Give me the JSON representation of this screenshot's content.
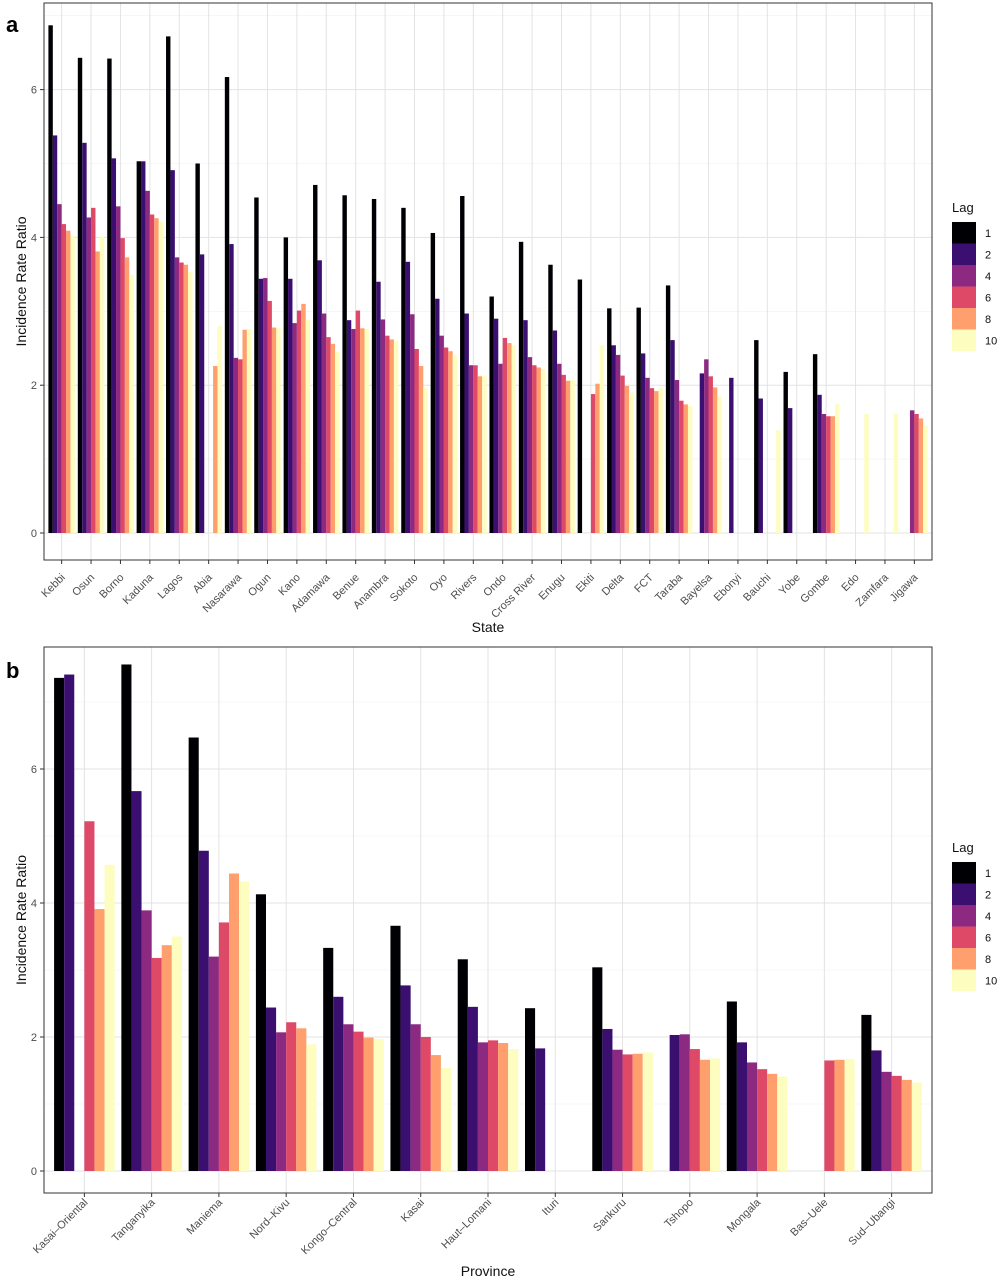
{
  "chart_data": [
    {
      "type": "bar",
      "panel_label": "a",
      "xlabel": "State",
      "ylabel": "Incidence Rate Ratio",
      "ylim": [
        0,
        7
      ],
      "yticks": [
        0,
        2,
        4,
        6
      ],
      "grid": true,
      "legend_title": "Lag",
      "legend_position": "right",
      "categories": [
        "Kebbi",
        "Osun",
        "Borno",
        "Kaduna",
        "Lagos",
        "Abia",
        "Nasarawa",
        "Ogun",
        "Kano",
        "Adamawa",
        "Benue",
        "Anambra",
        "Sokoto",
        "Oyo",
        "Rivers",
        "Ondo",
        "Cross River",
        "Enugu",
        "Ekiti",
        "Delta",
        "FCT",
        "Taraba",
        "Bayelsa",
        "Ebonyi",
        "Bauchi",
        "Yobe",
        "Gombe",
        "Edo",
        "Zamfara",
        "Jigawa"
      ],
      "series": [
        {
          "name": "1",
          "color": "#000004",
          "values": [
            6.87,
            6.43,
            6.42,
            5.03,
            6.72,
            5.0,
            6.17,
            4.54,
            4.0,
            4.71,
            4.57,
            4.52,
            4.4,
            4.06,
            4.56,
            3.2,
            3.94,
            3.63,
            3.43,
            3.04,
            3.05,
            3.35,
            null,
            null,
            2.61,
            2.18,
            2.42,
            null,
            null,
            null
          ]
        },
        {
          "name": "2",
          "color": "#3b0f70",
          "values": [
            5.38,
            5.28,
            5.07,
            5.03,
            4.91,
            3.77,
            3.91,
            3.44,
            3.44,
            3.69,
            2.88,
            3.4,
            3.67,
            3.17,
            2.97,
            2.9,
            2.88,
            2.74,
            null,
            2.54,
            2.43,
            2.61,
            2.16,
            2.1,
            1.82,
            1.69,
            1.87,
            null,
            null,
            null
          ]
        },
        {
          "name": "4",
          "color": "#8c2981",
          "values": [
            4.45,
            4.27,
            4.42,
            4.63,
            3.73,
            null,
            2.37,
            3.45,
            2.84,
            2.97,
            2.76,
            2.89,
            2.96,
            2.67,
            2.27,
            2.29,
            2.38,
            2.29,
            null,
            2.41,
            2.1,
            2.07,
            2.35,
            null,
            null,
            null,
            1.61,
            null,
            null,
            1.66
          ]
        },
        {
          "name": "6",
          "color": "#de4968",
          "values": [
            4.18,
            4.4,
            3.99,
            4.31,
            3.66,
            null,
            2.35,
            3.14,
            3.01,
            2.65,
            3.01,
            2.67,
            2.49,
            2.51,
            2.27,
            2.64,
            2.27,
            2.14,
            1.88,
            2.13,
            1.96,
            1.79,
            2.12,
            null,
            null,
            null,
            1.58,
            null,
            null,
            1.61
          ]
        },
        {
          "name": "8",
          "color": "#fe9f6d",
          "values": [
            4.09,
            3.81,
            3.73,
            4.26,
            3.63,
            2.26,
            2.75,
            2.78,
            3.1,
            2.56,
            2.77,
            2.62,
            2.26,
            2.46,
            2.12,
            2.57,
            2.24,
            2.06,
            2.02,
            1.99,
            1.92,
            1.74,
            1.97,
            null,
            null,
            null,
            1.58,
            null,
            null,
            1.55
          ]
        },
        {
          "name": "10",
          "color": "#fcfdbf",
          "values": [
            4.02,
            4.01,
            3.49,
            4.21,
            3.53,
            2.8,
            2.76,
            2.77,
            2.88,
            2.45,
            2.76,
            2.6,
            1.97,
            2.41,
            2.13,
            2.54,
            2.22,
            2.07,
            2.54,
            1.9,
            1.96,
            1.72,
            1.85,
            null,
            1.39,
            null,
            1.75,
            1.61,
            1.61,
            1.45
          ]
        }
      ]
    },
    {
      "type": "bar",
      "panel_label": "b",
      "xlabel": "Province",
      "ylabel": "Incidence Rate Ratio",
      "ylim": [
        0,
        7.8
      ],
      "yticks": [
        0,
        2,
        4,
        6
      ],
      "grid": true,
      "legend_title": "Lag",
      "legend_position": "right",
      "categories": [
        "Kasai–Oriental",
        "Tanganyika",
        "Maniema",
        "Nord–Kivu",
        "Kongo–Central",
        "Kasai",
        "Haut–Lomani",
        "Ituri",
        "Sankuru",
        "Tshopo",
        "Mongala",
        "Bas–Uele",
        "Sud–Ubangi"
      ],
      "series": [
        {
          "name": "1",
          "color": "#000004",
          "values": [
            7.36,
            7.56,
            6.47,
            4.13,
            3.33,
            3.66,
            3.16,
            2.43,
            3.04,
            null,
            2.53,
            null,
            2.33
          ]
        },
        {
          "name": "2",
          "color": "#3b0f70",
          "values": [
            7.41,
            5.67,
            4.78,
            2.44,
            2.6,
            2.77,
            2.45,
            1.83,
            2.12,
            2.03,
            1.92,
            null,
            1.8
          ]
        },
        {
          "name": "4",
          "color": "#8c2981",
          "values": [
            null,
            3.89,
            3.2,
            2.07,
            2.19,
            2.19,
            1.92,
            null,
            1.81,
            2.04,
            1.62,
            null,
            1.48
          ]
        },
        {
          "name": "6",
          "color": "#de4968",
          "values": [
            5.22,
            3.18,
            3.71,
            2.22,
            2.08,
            2.0,
            1.95,
            null,
            1.74,
            1.82,
            1.52,
            1.65,
            1.42
          ]
        },
        {
          "name": "8",
          "color": "#fe9f6d",
          "values": [
            3.91,
            3.37,
            4.44,
            2.13,
            1.99,
            1.73,
            1.91,
            null,
            1.75,
            1.66,
            1.45,
            1.66,
            1.36
          ]
        },
        {
          "name": "10",
          "color": "#fcfdbf",
          "values": [
            4.57,
            3.5,
            4.32,
            1.89,
            1.97,
            1.54,
            1.82,
            null,
            1.77,
            1.68,
            1.41,
            1.67,
            1.32
          ]
        }
      ]
    }
  ]
}
